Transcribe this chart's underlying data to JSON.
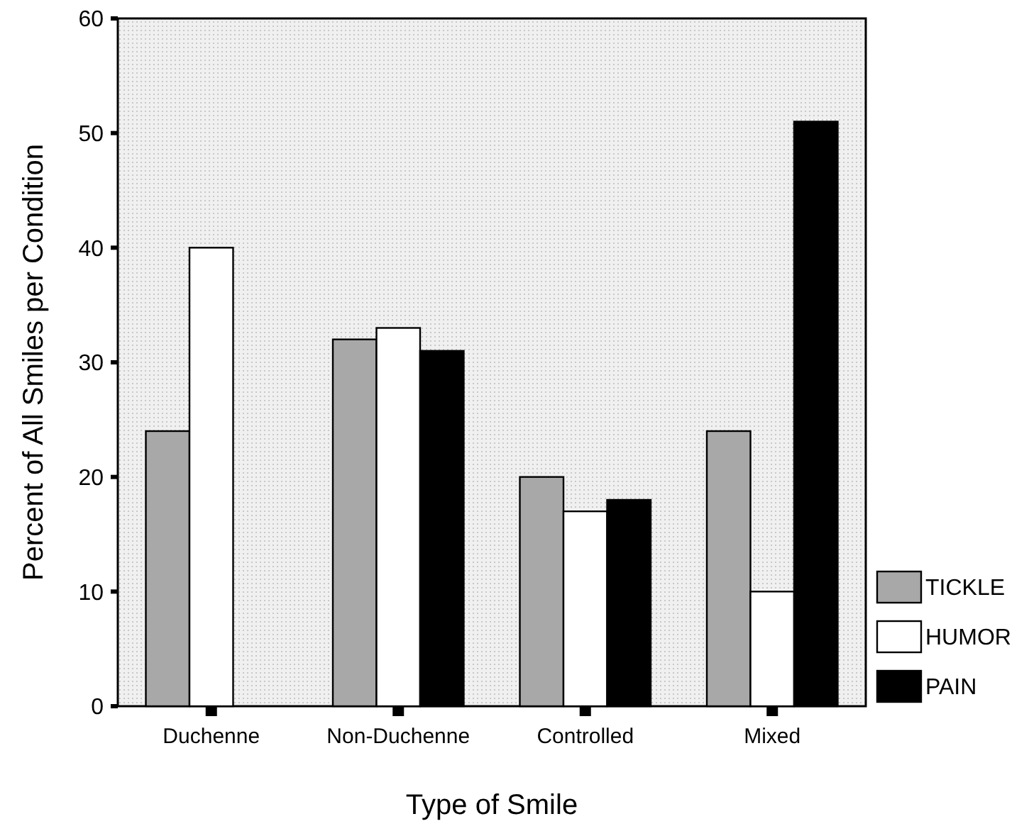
{
  "chart_data": {
    "type": "bar",
    "xlabel": "Type of Smile",
    "ylabel": "Percent of All Smiles per Condition",
    "categories": [
      "Duchenne",
      "Non-Duchenne",
      "Controlled",
      "Mixed"
    ],
    "series": [
      {
        "name": "TICKLE",
        "color": "#a8a8a8",
        "values": [
          24,
          32,
          20,
          24
        ]
      },
      {
        "name": "HUMOR",
        "color": "#ffffff",
        "values": [
          40,
          33,
          17,
          10
        ]
      },
      {
        "name": "PAIN",
        "color": "#000000",
        "values": [
          0,
          31,
          18,
          51
        ]
      }
    ],
    "ylim": [
      0,
      60
    ],
    "yticks": [
      0,
      10,
      20,
      30,
      40,
      50,
      60
    ],
    "grid": false,
    "legend": "bottom right"
  }
}
